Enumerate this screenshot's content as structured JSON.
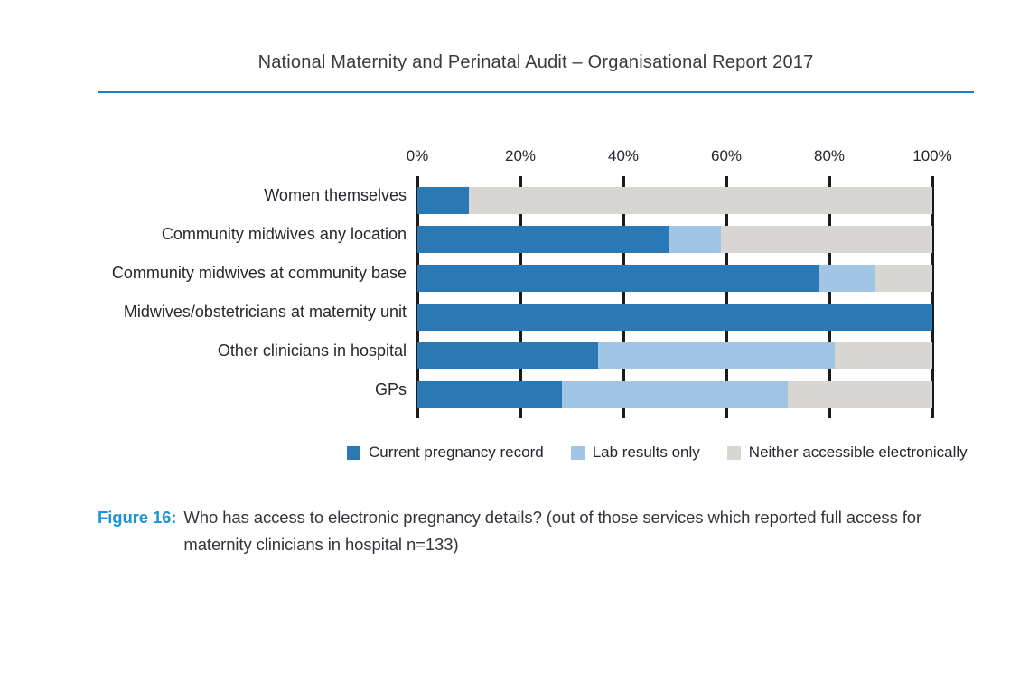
{
  "header": {
    "title": "National Maternity and Perinatal Audit – Organisational Report 2017",
    "rule_color": "#1e82c5"
  },
  "chart_data": {
    "type": "bar",
    "variant": "horizontal-stacked",
    "title": "",
    "xlabel": "",
    "ylabel": "",
    "xlim": [
      0,
      100
    ],
    "x_ticks": [
      "0%",
      "20%",
      "40%",
      "60%",
      "80%",
      "100%"
    ],
    "grid": "vertical tick lines at 20% intervals, visible between bars",
    "legend_position": "bottom",
    "categories": [
      "Women themselves",
      "Community midwives any location",
      "Community midwives at community base",
      "Midwives/obstetricians at maternity unit",
      "Other clinicians in hospital",
      "GPs"
    ],
    "series": [
      {
        "name": "Current pregnancy record",
        "color": "#2a79b5",
        "values": [
          10,
          49,
          78,
          100,
          35,
          28
        ]
      },
      {
        "name": "Lab results only",
        "color": "#a1c5e5",
        "values": [
          0,
          10,
          11,
          0,
          46,
          44
        ]
      },
      {
        "name": "Neither accessible electronically",
        "color": "#d8d6d3",
        "values": [
          90,
          41,
          11,
          0,
          19,
          28
        ]
      }
    ]
  },
  "caption": {
    "label": "Figure 16:",
    "label_color": "#1b96d3",
    "text": "Who has access to electronic pregnancy details? (out of those services which reported full access for maternity clinicians in hospital n=133)"
  }
}
